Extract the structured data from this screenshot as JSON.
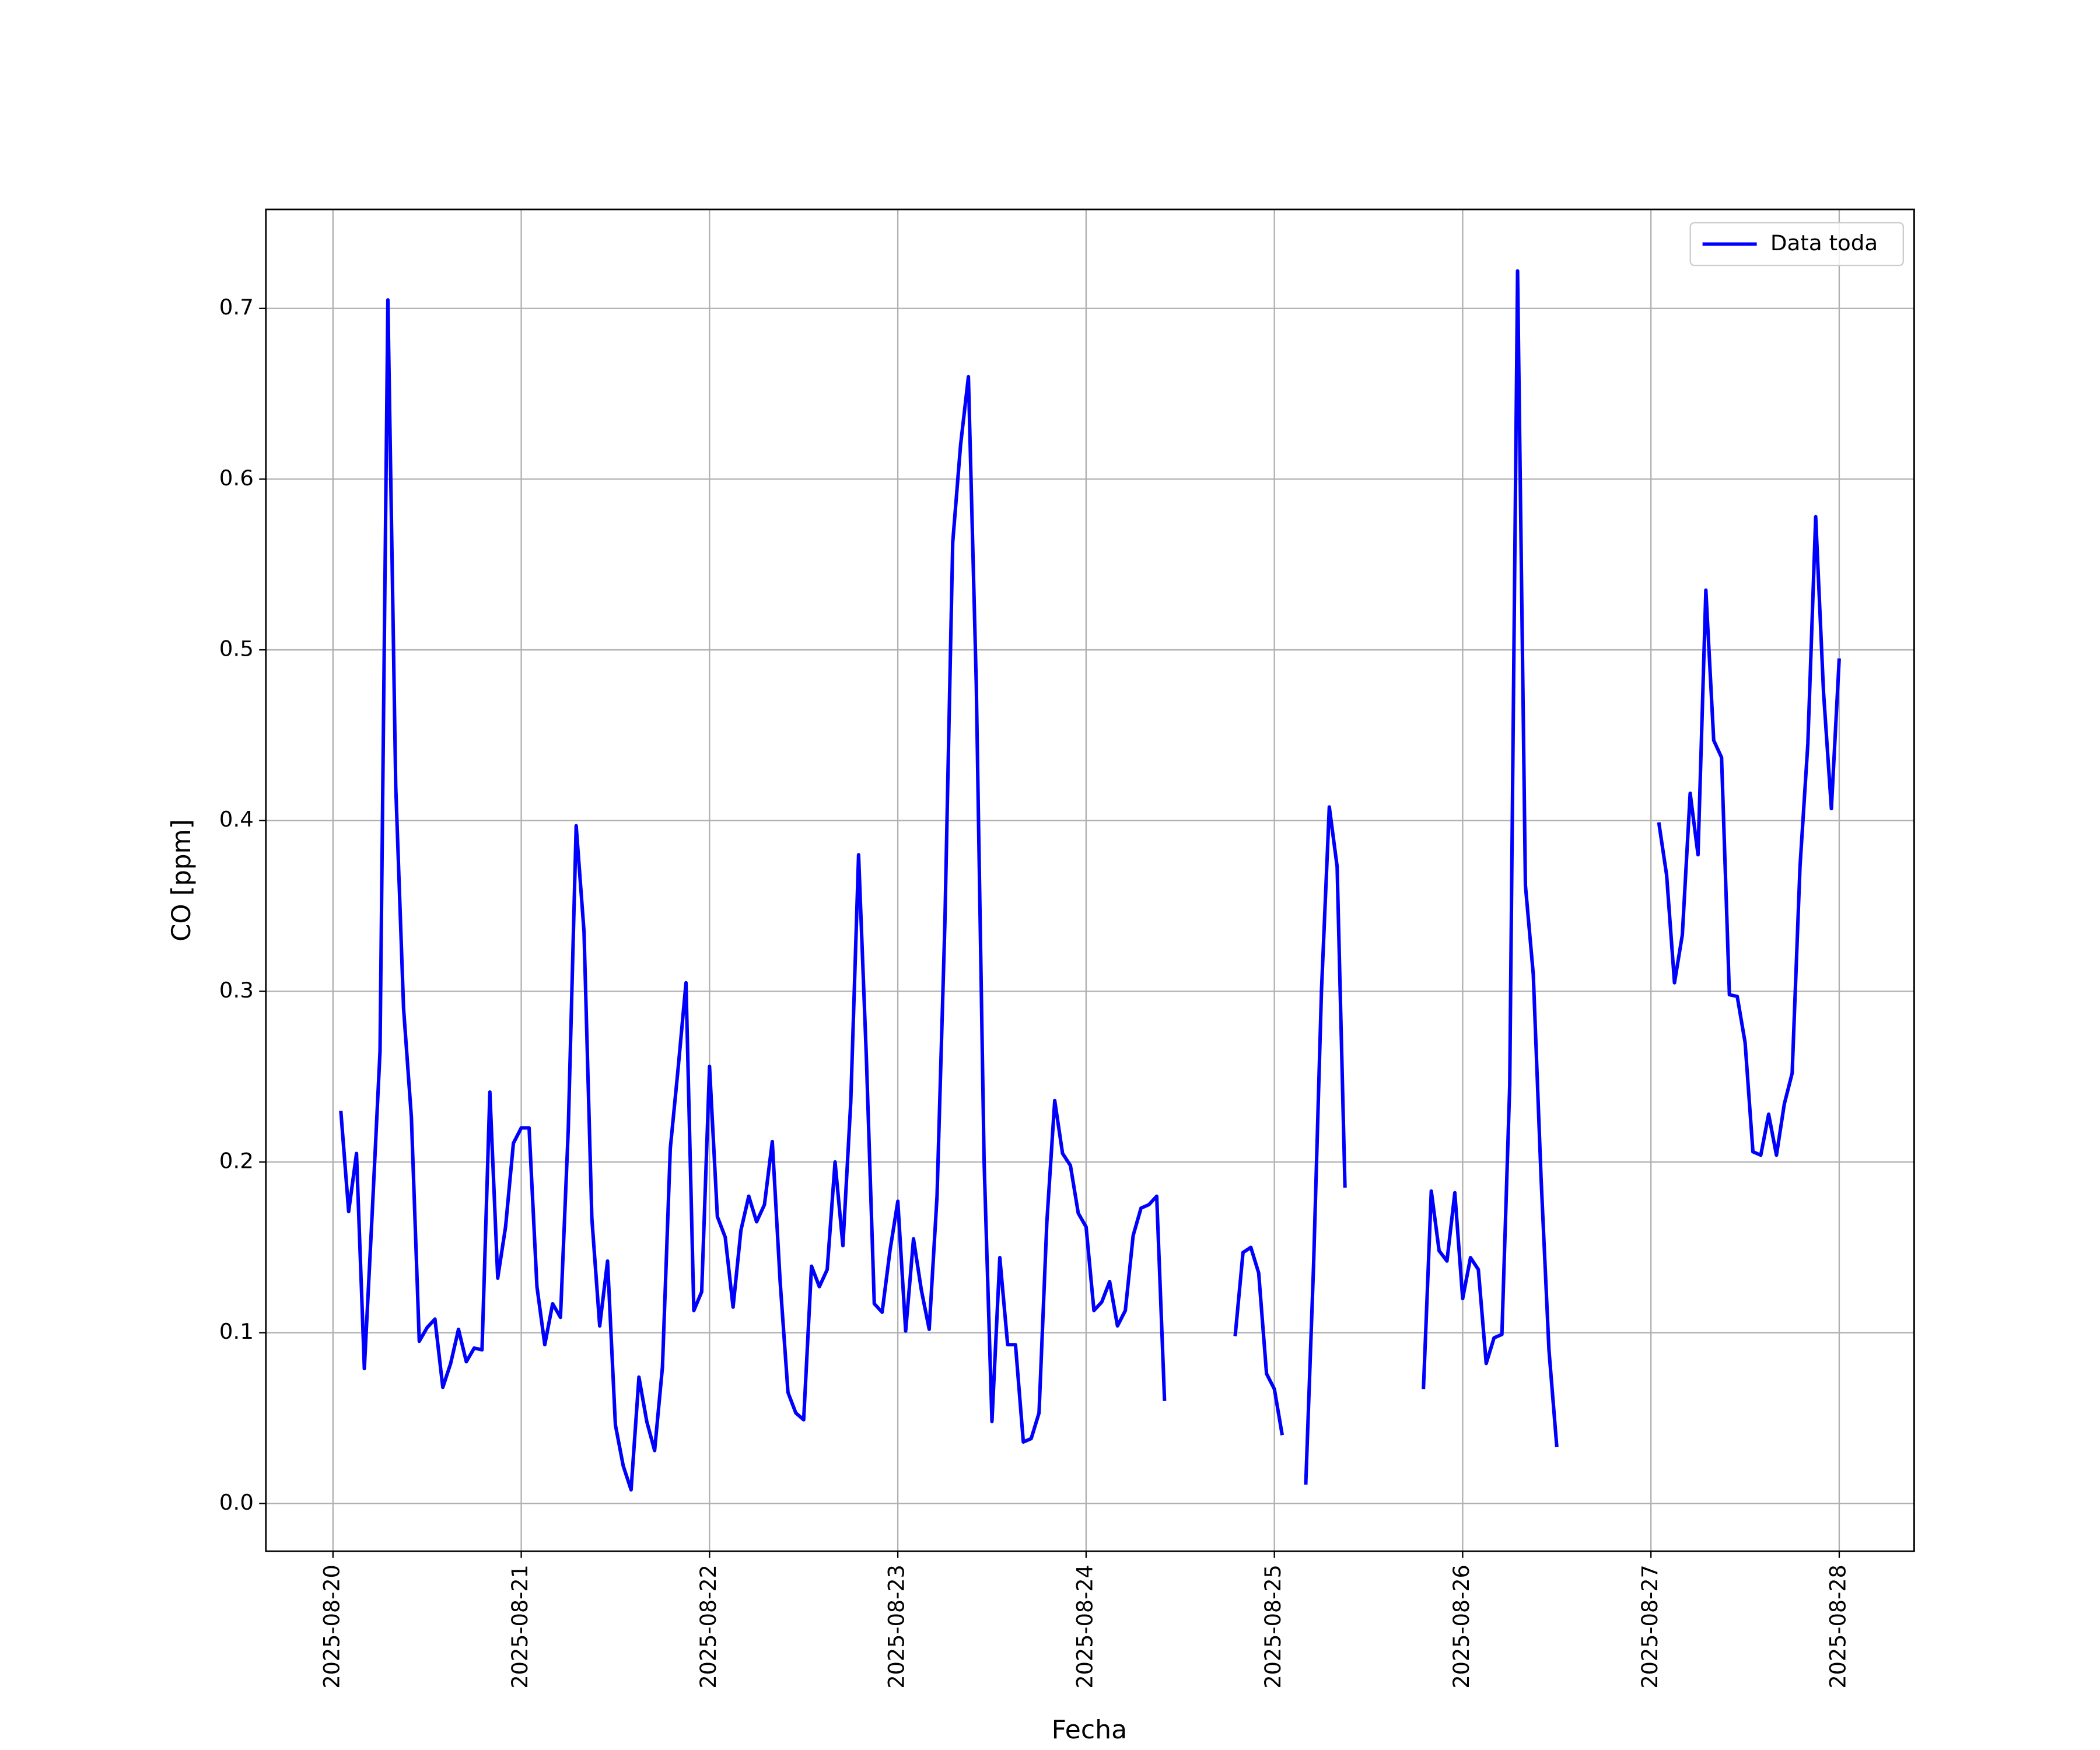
{
  "chart_data": {
    "type": "line",
    "x_label": "Fecha",
    "y_label": "CO [ppm]",
    "x": [
      "2025-08-20 01:00",
      "2025-08-20 02:00",
      "2025-08-20 03:00",
      "2025-08-20 04:00",
      "2025-08-20 05:00",
      "2025-08-20 06:00",
      "2025-08-20 07:00",
      "2025-08-20 08:00",
      "2025-08-20 09:00",
      "2025-08-20 10:00",
      "2025-08-20 11:00",
      "2025-08-20 12:00",
      "2025-08-20 13:00",
      "2025-08-20 14:00",
      "2025-08-20 15:00",
      "2025-08-20 16:00",
      "2025-08-20 17:00",
      "2025-08-20 18:00",
      "2025-08-20 19:00",
      "2025-08-20 20:00",
      "2025-08-20 21:00",
      "2025-08-20 22:00",
      "2025-08-20 23:00",
      "2025-08-21 00:00",
      "2025-08-21 01:00",
      "2025-08-21 02:00",
      "2025-08-21 03:00",
      "2025-08-21 04:00",
      "2025-08-21 05:00",
      "2025-08-21 06:00",
      "2025-08-21 07:00",
      "2025-08-21 08:00",
      "2025-08-21 09:00",
      "2025-08-21 10:00",
      "2025-08-21 11:00",
      "2025-08-21 12:00",
      "2025-08-21 13:00",
      "2025-08-21 14:00",
      "2025-08-21 15:00",
      "2025-08-21 16:00",
      "2025-08-21 17:00",
      "2025-08-21 18:00",
      "2025-08-21 19:00",
      "2025-08-21 20:00",
      "2025-08-21 21:00",
      "2025-08-21 22:00",
      "2025-08-21 23:00",
      "2025-08-22 00:00",
      "2025-08-22 01:00",
      "2025-08-22 02:00",
      "2025-08-22 03:00",
      "2025-08-22 04:00",
      "2025-08-22 05:00",
      "2025-08-22 06:00",
      "2025-08-22 07:00",
      "2025-08-22 08:00",
      "2025-08-22 09:00",
      "2025-08-22 10:00",
      "2025-08-22 11:00",
      "2025-08-22 12:00",
      "2025-08-22 13:00",
      "2025-08-22 14:00",
      "2025-08-22 15:00",
      "2025-08-22 16:00",
      "2025-08-22 17:00",
      "2025-08-22 18:00",
      "2025-08-22 19:00",
      "2025-08-22 20:00",
      "2025-08-22 21:00",
      "2025-08-22 22:00",
      "2025-08-22 23:00",
      "2025-08-23 00:00",
      "2025-08-23 01:00",
      "2025-08-23 02:00",
      "2025-08-23 03:00",
      "2025-08-23 04:00",
      "2025-08-23 05:00",
      "2025-08-23 06:00",
      "2025-08-23 07:00",
      "2025-08-23 08:00",
      "2025-08-23 09:00",
      "2025-08-23 10:00",
      "2025-08-23 11:00",
      "2025-08-23 12:00",
      "2025-08-23 13:00",
      "2025-08-23 14:00",
      "2025-08-23 15:00",
      "2025-08-23 16:00",
      "2025-08-23 17:00",
      "2025-08-23 18:00",
      "2025-08-23 19:00",
      "2025-08-23 20:00",
      "2025-08-23 21:00",
      "2025-08-23 22:00",
      "2025-08-23 23:00",
      "2025-08-24 00:00",
      "2025-08-24 01:00",
      "2025-08-24 02:00",
      "2025-08-24 03:00",
      "2025-08-24 04:00",
      "2025-08-24 05:00",
      "2025-08-24 06:00",
      "2025-08-24 07:00",
      "2025-08-24 08:00",
      "2025-08-24 09:00",
      "2025-08-24 10:00",
      "2025-08-24 11:00",
      "2025-08-24 12:00",
      "2025-08-24 13:00",
      "2025-08-24 14:00",
      "2025-08-24 15:00",
      "2025-08-24 16:00",
      "2025-08-24 17:00",
      "2025-08-24 18:00",
      "2025-08-24 19:00",
      "2025-08-24 20:00",
      "2025-08-24 21:00",
      "2025-08-24 22:00",
      "2025-08-24 23:00",
      "2025-08-25 00:00",
      "2025-08-25 01:00",
      "2025-08-25 02:00",
      "2025-08-25 03:00",
      "2025-08-25 04:00",
      "2025-08-25 05:00",
      "2025-08-25 06:00",
      "2025-08-25 07:00",
      "2025-08-25 08:00",
      "2025-08-25 09:00",
      "2025-08-25 10:00",
      "2025-08-25 11:00",
      "2025-08-25 12:00",
      "2025-08-25 13:00",
      "2025-08-25 14:00",
      "2025-08-25 15:00",
      "2025-08-25 16:00",
      "2025-08-25 17:00",
      "2025-08-25 18:00",
      "2025-08-25 19:00",
      "2025-08-25 20:00",
      "2025-08-25 21:00",
      "2025-08-25 22:00",
      "2025-08-25 23:00",
      "2025-08-26 00:00",
      "2025-08-26 01:00",
      "2025-08-26 02:00",
      "2025-08-26 03:00",
      "2025-08-26 04:00",
      "2025-08-26 05:00",
      "2025-08-26 06:00",
      "2025-08-26 07:00",
      "2025-08-26 08:00",
      "2025-08-26 09:00",
      "2025-08-26 10:00",
      "2025-08-26 11:00",
      "2025-08-26 12:00",
      "2025-08-26 13:00",
      "2025-08-26 14:00",
      "2025-08-26 15:00",
      "2025-08-26 16:00",
      "2025-08-26 17:00",
      "2025-08-26 18:00",
      "2025-08-26 19:00",
      "2025-08-26 20:00",
      "2025-08-26 21:00",
      "2025-08-26 22:00",
      "2025-08-26 23:00",
      "2025-08-27 00:00",
      "2025-08-27 01:00",
      "2025-08-27 02:00",
      "2025-08-27 03:00",
      "2025-08-27 04:00",
      "2025-08-27 05:00",
      "2025-08-27 06:00",
      "2025-08-27 07:00",
      "2025-08-27 08:00",
      "2025-08-27 09:00",
      "2025-08-27 10:00",
      "2025-08-27 11:00",
      "2025-08-27 12:00",
      "2025-08-27 13:00",
      "2025-08-27 14:00",
      "2025-08-27 15:00",
      "2025-08-27 16:00",
      "2025-08-27 17:00",
      "2025-08-27 18:00",
      "2025-08-27 19:00",
      "2025-08-27 20:00",
      "2025-08-27 21:00",
      "2025-08-27 22:00",
      "2025-08-27 23:00",
      "2025-08-28 00:00"
    ],
    "series": [
      {
        "name": "Data toda",
        "color": "#0000ff",
        "values": [
          0.23,
          0.171,
          0.205,
          0.079,
          0.17,
          0.265,
          0.705,
          0.42,
          0.29,
          0.226,
          0.095,
          0.103,
          0.108,
          0.068,
          0.082,
          0.102,
          0.083,
          0.091,
          0.09,
          0.241,
          0.132,
          0.162,
          0.211,
          0.22,
          0.22,
          0.127,
          0.093,
          0.117,
          0.109,
          0.22,
          0.397,
          0.335,
          0.167,
          0.104,
          0.142,
          0.046,
          0.022,
          0.008,
          0.074,
          0.048,
          0.031,
          0.08,
          0.208,
          0.255,
          0.305,
          0.113,
          0.124,
          0.256,
          0.168,
          0.156,
          0.115,
          0.16,
          0.18,
          0.165,
          0.175,
          0.212,
          0.13,
          0.065,
          0.053,
          0.049,
          0.139,
          0.127,
          0.137,
          0.2,
          0.151,
          0.235,
          0.38,
          0.26,
          0.117,
          0.112,
          0.148,
          0.177,
          0.101,
          0.155,
          0.125,
          0.102,
          0.18,
          0.34,
          0.563,
          0.62,
          0.66,
          0.48,
          0.2,
          0.048,
          0.144,
          0.093,
          0.093,
          0.036,
          0.038,
          0.053,
          0.165,
          0.236,
          0.205,
          0.198,
          0.17,
          0.162,
          0.113,
          0.118,
          0.13,
          0.104,
          0.113,
          0.157,
          0.173,
          0.175,
          0.18,
          0.06,
          null,
          null,
          null,
          null,
          null,
          null,
          null,
          null,
          0.098,
          0.147,
          0.15,
          0.135,
          0.076,
          0.067,
          0.04,
          null,
          null,
          0.011,
          0.14,
          0.3,
          0.408,
          0.373,
          0.185,
          null,
          null,
          null,
          null,
          null,
          null,
          null,
          null,
          null,
          0.067,
          0.183,
          0.148,
          0.142,
          0.182,
          0.12,
          0.144,
          0.137,
          0.082,
          0.097,
          0.099,
          0.245,
          0.722,
          0.362,
          0.31,
          0.19,
          0.09,
          0.033,
          null,
          null,
          null,
          null,
          null,
          null,
          null,
          null,
          null,
          null,
          null,
          null,
          0.399,
          0.368,
          0.305,
          0.333,
          0.416,
          0.38,
          0.535,
          0.447,
          0.437,
          0.298,
          0.297,
          0.27,
          0.206,
          0.204,
          0.228,
          0.204,
          0.234,
          0.252,
          0.373,
          0.445,
          0.578,
          0.475,
          0.407,
          0.495
        ]
      }
    ],
    "xlim": [
      "2025-08-19 15:27",
      "2025-08-28 09:33"
    ],
    "xticks": [
      "2025-08-20",
      "2025-08-21",
      "2025-08-22",
      "2025-08-23",
      "2025-08-24",
      "2025-08-25",
      "2025-08-26",
      "2025-08-27",
      "2025-08-28"
    ],
    "ylim": [
      -0.028,
      0.758
    ],
    "yticks": [
      {
        "value": 0,
        "label": "0.0"
      },
      0.1,
      0.2,
      0.3,
      0.4,
      0.5,
      0.6,
      0.7
    ],
    "grid": true,
    "legend": "upper right"
  }
}
